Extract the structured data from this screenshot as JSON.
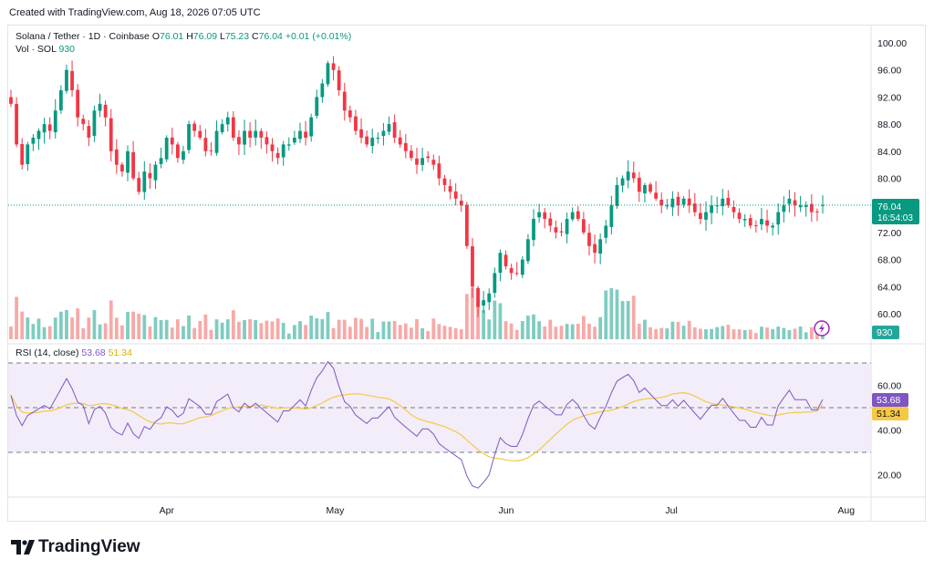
{
  "header": {
    "note": "Created with TradingView.com, Aug 18, 2026 07:05 UTC"
  },
  "legend": {
    "symbol": "Solana / Tether · 1D · Coinbase",
    "o_label": "O",
    "o": "76.01",
    "h_label": "H",
    "h": "76.09",
    "l_label": "L",
    "l": "75.23",
    "c_label": "C",
    "c": "76.04",
    "change": "+0.01 (+0.01%)",
    "vol_label": "Vol · SOL",
    "vol": "930"
  },
  "rsi_legend": {
    "label": "RSI (14, close)",
    "rsi": "53.68",
    "ma": "51.34"
  },
  "badges": {
    "price": "76.04",
    "countdown": "16:54:03",
    "volume": "930",
    "rsi": "53.68",
    "rsi_ma": "51.34"
  },
  "logo": {
    "text": "TradingView"
  },
  "colors": {
    "up": "#089981",
    "down": "#f23645",
    "up_vol": "#7fccc0",
    "down_vol": "#f7a9a7",
    "rsi": "#7e57c2",
    "rsi_ma": "#f7c843",
    "rsi_band": "#ede7f6"
  },
  "chart_data": [
    {
      "type": "candlestick",
      "title": "Solana / Tether · 1D · Coinbase",
      "y_ticks": [
        "100.00",
        "96.00",
        "92.00",
        "88.00",
        "84.00",
        "80.00",
        "76.00",
        "72.00",
        "68.00",
        "64.00",
        "60.00"
      ],
      "ylim": [
        58,
        101
      ],
      "x_ticks": [
        {
          "label": "Apr",
          "index": 28
        },
        {
          "label": "May",
          "index": 58
        },
        {
          "label": "Jun",
          "index": 89
        },
        {
          "label": "Jul",
          "index": 119
        },
        {
          "label": "Aug",
          "index": 150
        }
      ],
      "last_price": 76.04,
      "close": [
        91,
        85,
        82,
        85,
        86,
        87,
        88,
        87,
        90,
        93,
        96,
        93,
        89,
        88,
        86,
        90,
        91,
        89,
        84,
        82,
        81,
        84,
        80,
        78,
        81,
        80,
        82,
        83,
        86,
        85,
        83,
        84,
        88,
        87,
        86,
        84,
        84,
        87,
        88,
        89,
        86,
        85,
        87,
        86,
        87,
        86,
        85,
        84,
        83,
        85,
        85,
        86,
        87,
        86,
        89,
        92,
        94,
        97,
        96,
        93,
        90,
        89,
        87,
        86,
        85,
        86,
        86,
        87,
        88,
        86,
        85,
        84,
        83,
        82,
        83,
        83,
        82,
        80,
        79,
        78,
        77,
        76,
        70,
        64,
        61,
        62,
        63,
        66,
        69,
        67,
        66,
        66,
        68,
        71,
        74,
        75,
        74,
        73,
        72,
        72,
        74,
        75,
        74,
        72,
        70,
        69,
        71,
        73,
        76,
        79,
        80,
        81,
        80,
        78,
        79,
        78,
        77,
        76,
        76,
        77,
        76,
        77,
        76,
        75,
        74,
        75,
        76,
        76,
        77,
        76,
        75,
        74,
        74,
        73,
        73,
        74,
        73,
        73,
        75,
        76,
        77,
        76,
        76,
        76,
        75,
        75,
        76.04
      ],
      "volume_scale": "relative"
    },
    {
      "type": "line",
      "title": "RSI (14, close)",
      "y_ticks": [
        "60.00",
        "40.00",
        "20.00"
      ],
      "ylim": [
        14,
        76
      ],
      "band": [
        30,
        70
      ],
      "series": [
        {
          "name": "RSI",
          "last": 53.68
        },
        {
          "name": "MA",
          "last": 51.34
        }
      ]
    }
  ]
}
